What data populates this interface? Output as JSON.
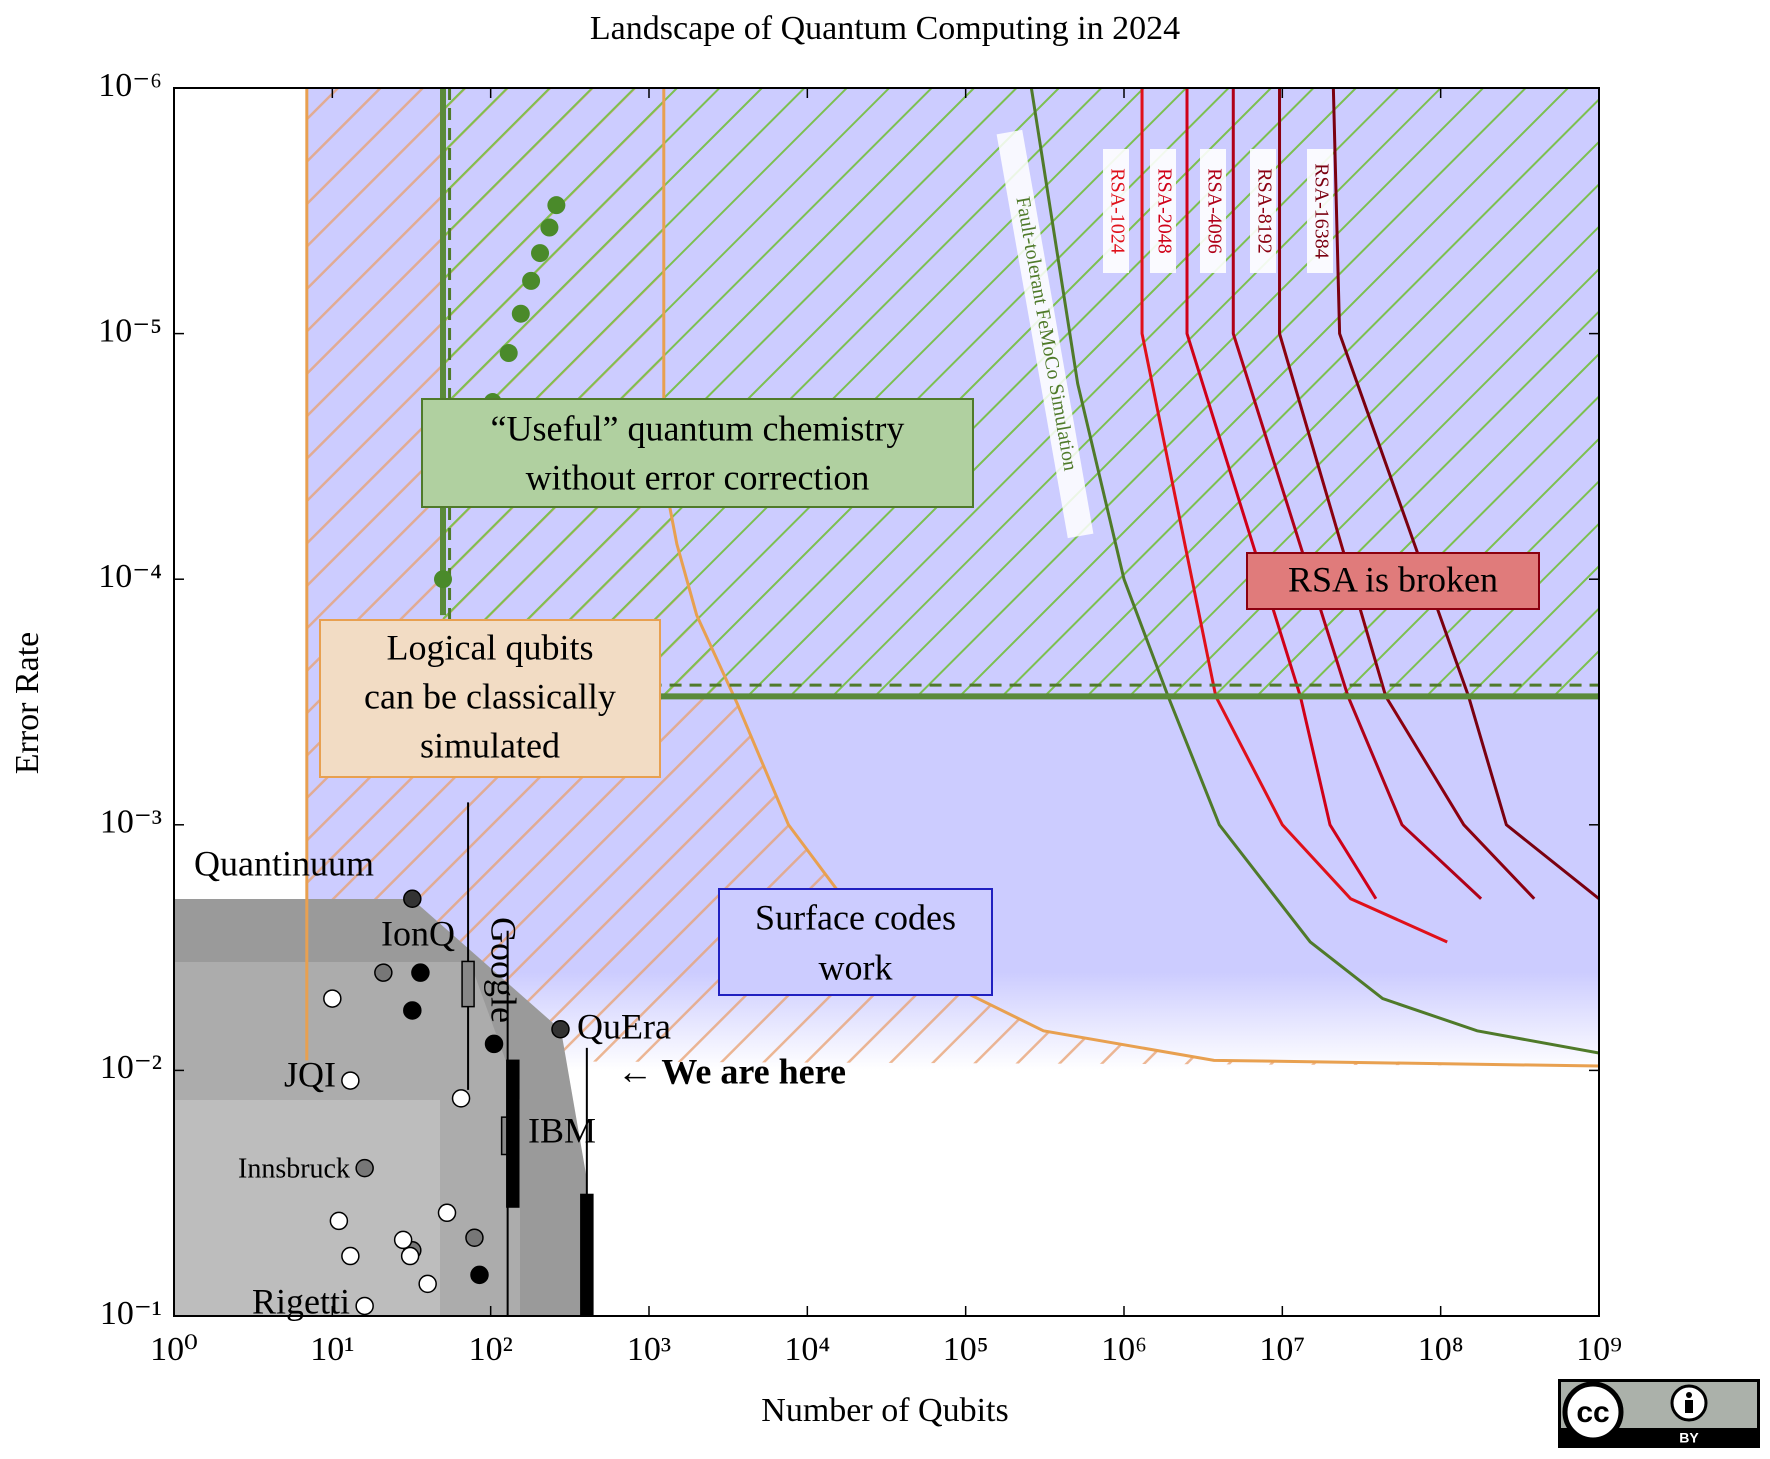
{
  "chart_data": {
    "type": "scatter",
    "title": "Landscape of Quantum Computing in 2024",
    "x_label": "Number of Qubits",
    "y_label": "Error Rate",
    "log_x": true,
    "log_y": true,
    "y_inverted": true,
    "xlim": [
      1,
      1000000000.0
    ],
    "ylim": [
      1e-06,
      0.1
    ],
    "xticks": [
      {
        "value": 1,
        "label": "10⁰"
      },
      {
        "value": 10,
        "label": "10¹"
      },
      {
        "value": 100,
        "label": "10²"
      },
      {
        "value": 1000,
        "label": "10³"
      },
      {
        "value": 10000.0,
        "label": "10⁴"
      },
      {
        "value": 100000.0,
        "label": "10⁵"
      },
      {
        "value": 1000000.0,
        "label": "10⁶"
      },
      {
        "value": 10000000.0,
        "label": "10⁷"
      },
      {
        "value": 100000000.0,
        "label": "10⁸"
      },
      {
        "value": 1000000000.0,
        "label": "10⁹"
      }
    ],
    "yticks": [
      {
        "value": 1e-06,
        "label": "10⁻⁶"
      },
      {
        "value": 1e-05,
        "label": "10⁻⁵"
      },
      {
        "value": 0.0001,
        "label": "10⁻⁴"
      },
      {
        "value": 0.001,
        "label": "10⁻³"
      },
      {
        "value": 0.01,
        "label": "10⁻²"
      },
      {
        "value": 0.1,
        "label": "10⁻¹"
      }
    ],
    "surface_code_threshold": 0.01,
    "surface_color": "#ccccff",
    "series": [
      {
        "name": "Fault-tolerant FeMoCo Simulation",
        "color": "#4f7a2a",
        "x": [
          260000.0,
          510000.0,
          1000000.0,
          1900000.0,
          4000000.0,
          15000000.0,
          43000000.0,
          170000000.0,
          1000000000.0
        ],
        "values": [
          1e-06,
          1.6e-05,
          0.0001,
          0.0003,
          0.001,
          0.003,
          0.0051,
          0.0069,
          0.0085
        ]
      },
      {
        "name": "RSA-1024",
        "color": "#e0101a",
        "x": [
          1300000.0,
          1300000.0,
          3800000.0,
          10000000.0,
          27000000.0,
          110000000.0
        ],
        "values": [
          1e-06,
          1e-05,
          0.0003,
          0.001,
          0.002,
          0.003
        ]
      },
      {
        "name": "RSA-2048",
        "color": "#d00018",
        "x": [
          2500000.0,
          2500000.0,
          13000000.0,
          20000000.0,
          39000000.0
        ],
        "values": [
          1e-06,
          1e-05,
          0.0003,
          0.001,
          0.002
        ]
      },
      {
        "name": "RSA-4096",
        "color": "#b00018",
        "x": [
          4900000.0,
          4900000.0,
          26000000.0,
          57000000.0,
          180000000.0
        ],
        "values": [
          1e-06,
          1e-05,
          0.0003,
          0.001,
          0.002
        ]
      },
      {
        "name": "RSA-8192",
        "color": "#8b0010",
        "x": [
          9600000.0,
          9600000.0,
          45000000.0,
          140000000.0,
          390000000.0
        ],
        "values": [
          1e-06,
          1e-05,
          0.0003,
          0.001,
          0.002
        ]
      },
      {
        "name": "RSA-16384",
        "color": "#7a0010",
        "x": [
          21000000.0,
          23000000.0,
          150000000.0,
          260000000.0,
          1000000000.0
        ],
        "values": [
          1e-06,
          1e-05,
          0.0003,
          0.001,
          0.002
        ]
      },
      {
        "color": "#e8a050",
        "x": [
          6.9,
          6.9
        ],
        "values": [
          1e-06,
          0.0091
        ]
      },
      {
        "color": "#e8a050",
        "x": [
          1240,
          1240,
          1500,
          2000,
          3600,
          7600,
          16000.0,
          60000.0,
          310000.0,
          3700000.0,
          1000000000.0
        ],
        "values": [
          1e-06,
          3.8e-05,
          7.2e-05,
          0.00014,
          0.00032,
          0.001,
          0.0019,
          0.0041,
          0.0069,
          0.0091,
          0.0096
        ]
      },
      {
        "color": "#5a8a3a",
        "x": [
          50,
          50
        ],
        "values": [
          1e-06,
          0.00014
        ],
        "width": 6
      },
      {
        "color": "#5a8a3a",
        "x": [
          50,
          1000000000.0
        ],
        "values": [
          0.0003,
          0.0003
        ],
        "width": 6
      },
      {
        "color": "#4f7a2a",
        "x": [
          55,
          55
        ],
        "values": [
          1e-06,
          0.00027
        ],
        "dashed": true
      },
      {
        "color": "#4f7a2a",
        "x": [
          55,
          1000000000.0
        ],
        "values": [
          0.00027,
          0.00027
        ],
        "dashed": true
      }
    ],
    "points": [
      {
        "color": "#4a8a2a",
        "x": [
          50,
          103,
          130,
          155,
          180,
          205,
          235,
          260
        ],
        "values": [
          0.0001,
          1.9e-05,
          1.2e-05,
          8.3e-06,
          6.1e-06,
          4.7e-06,
          3.7e-06,
          3e-06
        ]
      },
      {
        "color": "#333333",
        "x": [
          32,
          276
        ],
        "values": [
          0.002,
          0.0068
        ]
      },
      {
        "color": "#000000",
        "x": [
          36,
          32,
          105,
          85
        ],
        "values": [
          0.004,
          0.0057,
          0.0078,
          0.068
        ]
      },
      {
        "color": "#777777",
        "x": [
          21,
          79,
          32,
          16
        ],
        "values": [
          0.004,
          0.048,
          0.054,
          0.025
        ]
      },
      {
        "color": "#ffffff",
        "x": [
          10,
          13,
          65,
          11,
          13,
          28,
          31,
          53,
          40,
          16
        ],
        "values": [
          0.0051,
          0.011,
          0.013,
          0.041,
          0.057,
          0.049,
          0.057,
          0.038,
          0.074,
          0.091
        ]
      }
    ],
    "boxes": [
      {
        "x": 72,
        "low": 0.00081,
        "q1": 0.0036,
        "q3": 0.0055,
        "high": 0.012,
        "color": "#888888"
      },
      {
        "x": 128,
        "low": 0.0027,
        "q1": 0.0155,
        "q3": 0.022,
        "high": 0.1,
        "color": "#888888"
      },
      {
        "x": 138,
        "low": 0.0091,
        "q1": 0.0091,
        "q3": 0.036,
        "high": 0.036,
        "color": "#000000"
      },
      {
        "x": 405,
        "low": 0.0081,
        "q1": 0.032,
        "q3": 0.1,
        "high": 0.1,
        "color": "#000000"
      }
    ],
    "point_labels": [
      "Quantinuum",
      "IonQ",
      "Google",
      "QuEra",
      "JQI",
      "Innsbruck",
      "IBM",
      "Rigetti"
    ],
    "here_label": "← We are here",
    "text_boxes": [
      {
        "lines": [
          "“Useful” quantum chemistry",
          "without error correction"
        ],
        "fill": "#b0d0a0",
        "border": "#4f7a2a"
      },
      {
        "lines": [
          "Logical qubits",
          "can be classically",
          "simulated"
        ],
        "fill": "#f2dcc4",
        "border": "#e8a050"
      },
      {
        "lines": [
          "Surface codes",
          "work"
        ],
        "fill": "#ccccff",
        "border": "#2020c0"
      },
      {
        "lines": [
          "RSA is broken"
        ],
        "fill": "#e07b7b",
        "border": "#8b0010"
      }
    ]
  },
  "license": {
    "logo": "cc",
    "badge": "BY"
  }
}
